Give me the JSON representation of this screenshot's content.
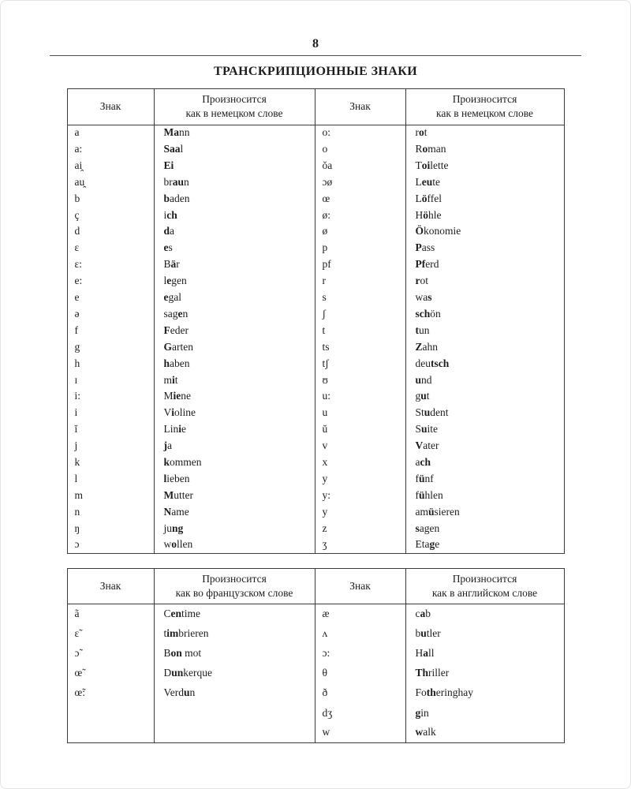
{
  "page": {
    "number": "8",
    "title": "ТРАНСКРИПЦИОННЫЕ ЗНАКИ"
  },
  "tables": [
    {
      "left_header": {
        "sign": "Знак",
        "line1": "Произносится",
        "line2": "как в немецком слове"
      },
      "right_header": {
        "sign": "Знак",
        "line1": "Произносится",
        "line2": "как в немецком слове"
      },
      "left_rows": [
        {
          "sign": "a",
          "word": "*Ma*nn"
        },
        {
          "sign": "a:",
          "word": "*Saa*l"
        },
        {
          "sign": "ai̯",
          "word": "*Ei*"
        },
        {
          "sign": "au̯",
          "word": "br*au*n"
        },
        {
          "sign": "b",
          "word": "*b*aden"
        },
        {
          "sign": "ç",
          "word": "i*ch*"
        },
        {
          "sign": "d",
          "word": "*d*a"
        },
        {
          "sign": "ɛ",
          "word": "*e*s"
        },
        {
          "sign": "ɛ:",
          "word": "B*ä*r"
        },
        {
          "sign": "e:",
          "word": "l*e*gen"
        },
        {
          "sign": "e",
          "word": "*e*gal"
        },
        {
          "sign": "ə",
          "word": "sag*e*n"
        },
        {
          "sign": "f",
          "word": "*F*eder"
        },
        {
          "sign": "g",
          "word": "*G*arten"
        },
        {
          "sign": "h",
          "word": "*h*aben"
        },
        {
          "sign": "ɪ",
          "word": "m*i*t"
        },
        {
          "sign": "i:",
          "word": "M*ie*ne"
        },
        {
          "sign": "i",
          "word": "V*i*oline"
        },
        {
          "sign": "ĭ",
          "word": "Lin*i*e"
        },
        {
          "sign": "j",
          "word": "*j*a"
        },
        {
          "sign": "k",
          "word": "*k*ommen"
        },
        {
          "sign": "l",
          "word": "*l*ieben"
        },
        {
          "sign": "m",
          "word": "*M*utter"
        },
        {
          "sign": "n",
          "word": "*N*ame"
        },
        {
          "sign": "ŋ",
          "word": "ju*ng*"
        },
        {
          "sign": "ɔ",
          "word": "w*o*llen"
        }
      ],
      "right_rows": [
        {
          "sign": "o:",
          "word": "r*o*t"
        },
        {
          "sign": "o",
          "word": "R*o*man"
        },
        {
          "sign": "ŏa",
          "word": "T*oi*lette"
        },
        {
          "sign": "ɔø",
          "word": "L*eu*te"
        },
        {
          "sign": "œ",
          "word": "L*ö*ffel"
        },
        {
          "sign": "ø:",
          "word": "H*ö*hle"
        },
        {
          "sign": "ø",
          "word": "*Ö*konomie"
        },
        {
          "sign": "p",
          "word": "*P*ass"
        },
        {
          "sign": "pf",
          "word": "*Pf*erd"
        },
        {
          "sign": "r",
          "word": "*r*ot"
        },
        {
          "sign": "s",
          "word": "wa*s*"
        },
        {
          "sign": "ʃ",
          "word": "*sch*ön"
        },
        {
          "sign": "t",
          "word": "*t*un"
        },
        {
          "sign": "ts",
          "word": "*Z*ahn"
        },
        {
          "sign": "tʃ",
          "word": "deu*tsch*"
        },
        {
          "sign": "ʊ",
          "word": "*u*nd"
        },
        {
          "sign": "u:",
          "word": "g*u*t"
        },
        {
          "sign": "u",
          "word": "St*u*dent"
        },
        {
          "sign": "ŭ",
          "word": "S*u*ite"
        },
        {
          "sign": "v",
          "word": "*V*ater"
        },
        {
          "sign": "x",
          "word": "a*ch*"
        },
        {
          "sign": "y",
          "word": "f*ü*nf"
        },
        {
          "sign": "y:",
          "word": "f*ü*hlen"
        },
        {
          "sign": "y",
          "word": "am*ü*sieren"
        },
        {
          "sign": "z",
          "word": "*s*agen"
        },
        {
          "sign": "ʒ",
          "word": "Eta*g*e"
        }
      ]
    },
    {
      "left_header": {
        "sign": "Знак",
        "line1": "Произносится",
        "line2": "как во французском слове"
      },
      "right_header": {
        "sign": "Знак",
        "line1": "Произносится",
        "line2": "как в английском слове"
      },
      "left_rows": [
        {
          "sign": "ã",
          "word": "C*en*time"
        },
        {
          "sign": "ɛ̃",
          "word": "t*im*brieren"
        },
        {
          "sign": "ɔ̃",
          "word": "B*on* mot"
        },
        {
          "sign": "œ̃",
          "word": "D*un*kerque"
        },
        {
          "sign": "œ̃:",
          "word": "Verd*u*n"
        }
      ],
      "right_rows": [
        {
          "sign": "æ",
          "word": "c*a*b"
        },
        {
          "sign": "ʌ",
          "word": "b*u*tler"
        },
        {
          "sign": "ɔ:",
          "word": "H*a*ll"
        },
        {
          "sign": "θ",
          "word": "*Th*riller"
        },
        {
          "sign": "ð",
          "word": "Fo*th*eringhay"
        },
        {
          "sign": "dʒ",
          "word": "*g*in"
        },
        {
          "sign": "w",
          "word": "*w*alk"
        }
      ]
    }
  ]
}
